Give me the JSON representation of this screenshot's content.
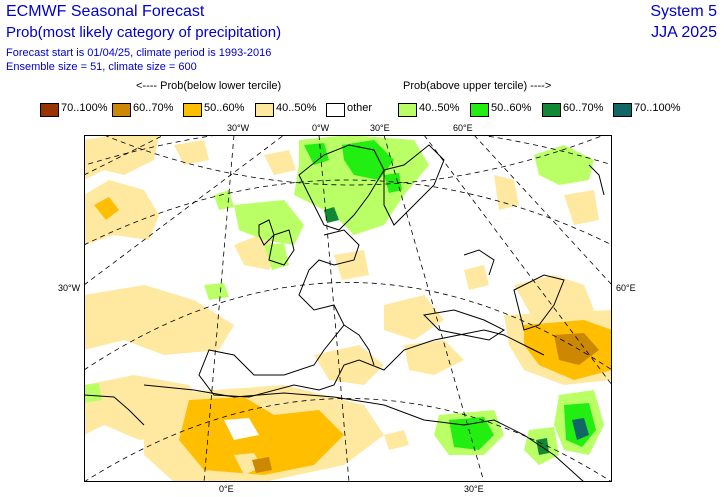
{
  "header": {
    "title": "ECMWF Seasonal Forecast",
    "subtitle": "Prob(most likely category of precipitation)",
    "forecast_info": "Forecast start is 01/04/25, climate period is 1993-2016",
    "ensemble_info": "Ensemble size = 51, climate size = 600",
    "system": "System 5",
    "season": "JJA 2025"
  },
  "legend": {
    "below_label": "<---- Prob(below lower tercile)",
    "above_label": "Prob(above upper tercile) ---->",
    "items": [
      {
        "label": "70..100%",
        "color": "#993300"
      },
      {
        "label": "60..70%",
        "color": "#cc8800"
      },
      {
        "label": "50..60%",
        "color": "#ffbf00"
      },
      {
        "label": "40..50%",
        "color": "#ffe8a0"
      },
      {
        "label": "other",
        "color": "#ffffff"
      },
      {
        "label": "40..50%",
        "color": "#bbff66"
      },
      {
        "label": "50..60%",
        "color": "#22ee11"
      },
      {
        "label": "60..70%",
        "color": "#118833"
      },
      {
        "label": "70..100%",
        "color": "#116666"
      }
    ]
  },
  "map": {
    "labels": {
      "lon_30w_top": "30°W",
      "lon_0_top": "0°W",
      "lon_30e_top": "30°E",
      "lon_60e_top": "60°E",
      "lat_30w_left": "30°W",
      "lat_60e_right": "60°E",
      "lon_0_bottom": "0°E",
      "lon_30e_bottom": "30°E"
    }
  }
}
